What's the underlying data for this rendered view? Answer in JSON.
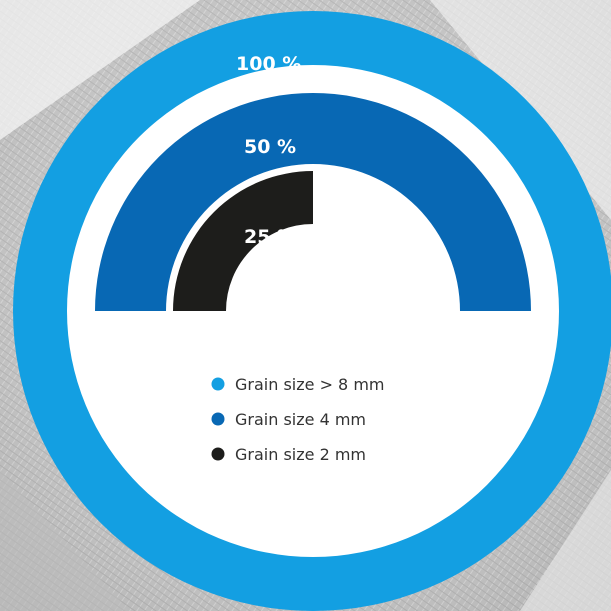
{
  "chart_data": {
    "type": "radial-bar",
    "max": 100,
    "series": [
      {
        "name": "Grain size > 8 mm",
        "value": 100,
        "label": "100 %",
        "color": "#139fe2"
      },
      {
        "name": "Grain size 4 mm",
        "value": 50,
        "label": "50 %",
        "color": "#0868b4"
      },
      {
        "name": "Grain size 2 mm",
        "value": 25,
        "label": "25 %",
        "color": "#1d1d1b"
      }
    ],
    "legend": {
      "position": "center",
      "entries": [
        "Grain size > 8 mm",
        "Grain size 4 mm",
        "Grain size 2 mm"
      ]
    },
    "background_icon": "grain-sieve-photo"
  }
}
